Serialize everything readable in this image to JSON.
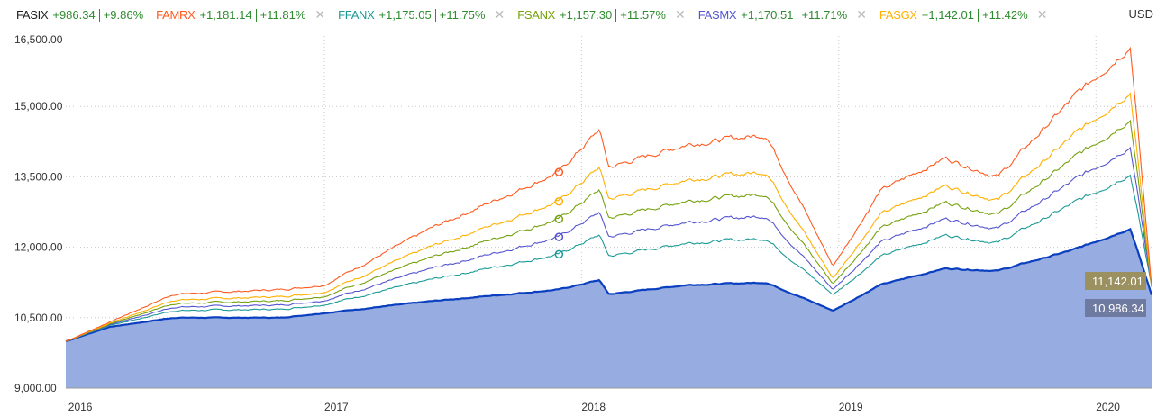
{
  "currency": "USD",
  "legend": [
    {
      "ticker": "FASIX",
      "change": "+986.34",
      "pct": "+9.86%",
      "color": "#222222",
      "removable": false
    },
    {
      "ticker": "FAMRX",
      "change": "+1,181.14",
      "pct": "+11.81%",
      "color": "#ff5a1f",
      "removable": true
    },
    {
      "ticker": "FFANX",
      "change": "+1,175.05",
      "pct": "+11.75%",
      "color": "#1a9a96",
      "removable": true
    },
    {
      "ticker": "FSANX",
      "change": "+1,157.30",
      "pct": "+11.57%",
      "color": "#76a10e",
      "removable": true
    },
    {
      "ticker": "FASMX",
      "change": "+1,170.51",
      "pct": "+11.71%",
      "color": "#5454d0",
      "removable": true
    },
    {
      "ticker": "FASGX",
      "change": "+1,142.01",
      "pct": "+11.42%",
      "color": "#ffb000",
      "removable": true
    }
  ],
  "remove_icon": "close-icon",
  "end_labels": {
    "top": "11,142.01",
    "bottom": "10,986.34"
  },
  "chart_data": {
    "type": "line",
    "ylim": [
      9000,
      16500
    ],
    "yticks": [
      "9,000.00",
      "10,500.00",
      "12,000.00",
      "13,500.00",
      "15,000.00",
      "16,500.00"
    ],
    "ytick_values": [
      9000,
      10500,
      12000,
      13500,
      15000,
      16500
    ],
    "xticks": [
      "2016",
      "2017",
      "2018",
      "2019",
      "2020"
    ],
    "xtick_dates": [
      "2016-01-01",
      "2017-01-01",
      "2018-01-01",
      "2019-01-01",
      "2020-01-01"
    ],
    "xlim": [
      "2015-12-31",
      "2020-03-20"
    ],
    "grid": true,
    "marker_date": "2017-11-30",
    "x": [
      "2016-01-01",
      "2016-03-01",
      "2016-06-01",
      "2016-11-01",
      "2017-01-01",
      "2017-06-01",
      "2017-11-30",
      "2018-01-26",
      "2018-02-09",
      "2018-06-01",
      "2018-09-20",
      "2018-12-24",
      "2019-03-01",
      "2019-06-01",
      "2019-08-15",
      "2019-12-01",
      "2020-02-19",
      "2020-03-20"
    ],
    "series": [
      {
        "name": "FAMRX",
        "color": "#ff5a1f",
        "values": [
          10000,
          10400,
          11000,
          11100,
          11200,
          12400,
          13600,
          14500,
          13700,
          14200,
          14400,
          11600,
          13200,
          13900,
          13500,
          15200,
          16300,
          11181
        ]
      },
      {
        "name": "FASGX",
        "color": "#ffb000",
        "values": [
          10000,
          10375,
          10875,
          10950,
          11050,
          12012,
          12975,
          13700,
          13025,
          13450,
          13612,
          11337,
          12700,
          13312,
          13000,
          14387,
          15325,
          11142
        ]
      },
      {
        "name": "FSANX",
        "color": "#76a10e",
        "values": [
          10000,
          10360,
          10800,
          10860,
          10960,
          11780,
          12600,
          13220,
          12620,
          13000,
          13140,
          11220,
          12400,
          12960,
          12700,
          13900,
          14740,
          11157
        ]
      },
      {
        "name": "FASMX",
        "color": "#5454d0",
        "values": [
          10000,
          10345,
          10725,
          10770,
          10870,
          11540,
          12220,
          12740,
          12220,
          12550,
          12670,
          11100,
          12100,
          12610,
          12400,
          13420,
          14160,
          11170
        ]
      },
      {
        "name": "FFANX",
        "color": "#1a9a96",
        "values": [
          10000,
          10330,
          10650,
          10680,
          10780,
          11310,
          11850,
          12260,
          11810,
          12100,
          12190,
          10990,
          11800,
          12260,
          12100,
          12940,
          13570,
          11175
        ]
      },
      {
        "name": "FASIX",
        "color": "#0a3fbf",
        "area": "#97ace0",
        "values": [
          10000,
          10300,
          10500,
          10500,
          10600,
          10850,
          11100,
          11300,
          11000,
          11200,
          11250,
          10650,
          11200,
          11550,
          11500,
          11950,
          12400,
          10986
        ]
      }
    ]
  }
}
